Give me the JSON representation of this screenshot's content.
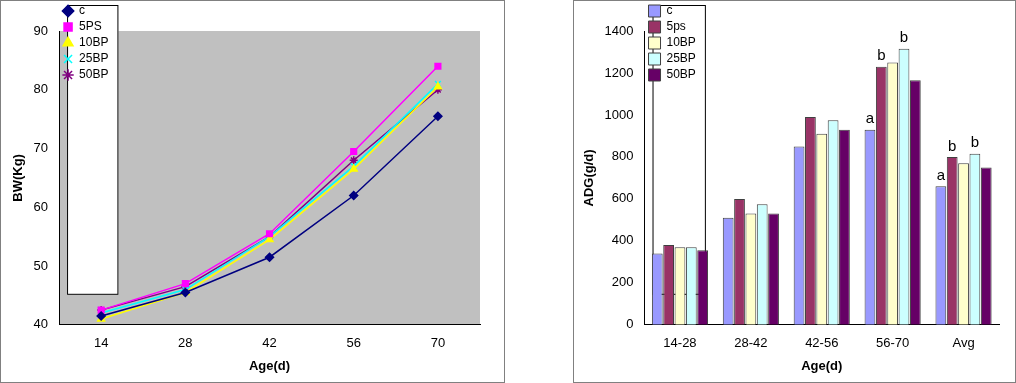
{
  "chart_data": [
    {
      "type": "line",
      "x_label": "Age(d)",
      "y_label": "BW(Kg)",
      "categories": [
        "14",
        "28",
        "42",
        "56",
        "70"
      ],
      "series": [
        {
          "name": "c",
          "color": "#000080",
          "marker": "diamond",
          "values": [
            41.5,
            45.5,
            51.5,
            62,
            75.5
          ]
        },
        {
          "name": "5PS",
          "color": "#ff00ff",
          "marker": "square",
          "values": [
            42.5,
            47,
            55.5,
            69.5,
            84
          ]
        },
        {
          "name": "10BP",
          "color": "#ffff00",
          "marker": "triangle",
          "values": [
            41,
            45.5,
            54.5,
            66.5,
            80.5
          ]
        },
        {
          "name": "25BP",
          "color": "#00ffff",
          "marker": "x",
          "values": [
            42,
            46,
            55,
            67,
            81
          ]
        },
        {
          "name": "50BP",
          "color": "#800080",
          "marker": "star",
          "values": [
            42.5,
            46.5,
            55,
            68,
            80
          ]
        }
      ],
      "ylim": [
        40,
        90
      ],
      "yticks": [
        40,
        50,
        60,
        70,
        80,
        90
      ],
      "grid": false,
      "legend": "upper left"
    },
    {
      "type": "bar",
      "x_label": "Age(d)",
      "y_label": "ADG(g/d)",
      "categories": [
        "14-28",
        "28-42",
        "42-56",
        "56-70",
        "Avg"
      ],
      "series": [
        {
          "name": "c",
          "color": "#9999ff",
          "values": [
            340,
            510,
            850,
            930,
            660
          ]
        },
        {
          "name": "5ps",
          "color": "#993366",
          "values": [
            380,
            600,
            990,
            1230,
            800
          ]
        },
        {
          "name": "10BP",
          "color": "#ffffcc",
          "values": [
            370,
            530,
            910,
            1250,
            770
          ]
        },
        {
          "name": "25BP",
          "color": "#ccffff",
          "values": [
            370,
            575,
            975,
            1315,
            815
          ]
        },
        {
          "name": "50BP",
          "color": "#660066",
          "values": [
            355,
            530,
            930,
            1165,
            750
          ]
        }
      ],
      "annotations": [
        {
          "category": "56-70",
          "series": "c",
          "text": "a"
        },
        {
          "category": "56-70",
          "series": "5ps",
          "text": "b"
        },
        {
          "category": "56-70",
          "series": "25BP",
          "text": "b"
        },
        {
          "category": "Avg",
          "series": "c",
          "text": "a"
        },
        {
          "category": "Avg",
          "series": "5ps",
          "text": "b"
        },
        {
          "category": "Avg",
          "series": "25BP",
          "text": "b"
        }
      ],
      "ylim": [
        0,
        1400
      ],
      "yticks": [
        0,
        200,
        400,
        600,
        800,
        1000,
        1200,
        1400
      ],
      "grid": false,
      "legend": "upper left"
    }
  ]
}
